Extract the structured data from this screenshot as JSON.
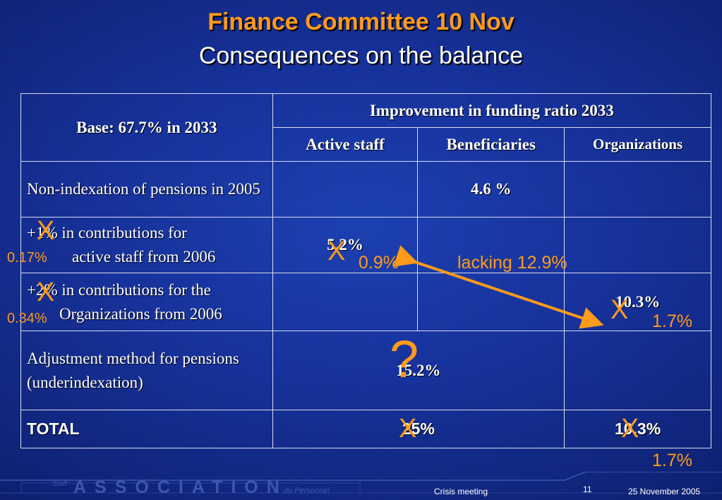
{
  "slide": {
    "title": "Finance Committee 10 Nov",
    "subtitle": "Consequences on the balance"
  },
  "table": {
    "base_label": "Base: 67.7% in 2033",
    "improvement_header": "Improvement in funding ratio 2033",
    "columns": [
      "Active staff",
      "Beneficiaries",
      "Organizations"
    ],
    "rows": [
      {
        "label": "Non-indexation of pensions in 2005",
        "beneficiaries": "4.6 %"
      },
      {
        "label_prefix": "+1% in contributions for",
        "label_suffix": "active staff from 2006",
        "active": "5.2%"
      },
      {
        "label_prefix": "+2% in contributions for the",
        "label_suffix": "Organizations from 2006",
        "organizations": "10.3%"
      },
      {
        "label": "Adjustment method for pensions (underindexation)",
        "active_beneficiaries": "15.2%"
      }
    ],
    "total": {
      "label": "TOTAL",
      "active_beneficiaries": "25%",
      "organizations": "10.3%"
    }
  },
  "annotations": {
    "x_mark": "X",
    "question_mark": "?",
    "row2_left": "0.17%",
    "row3_left": "0.34%",
    "active_new": "0.9%",
    "lacking": "lacking 12.9%",
    "org_new": "1.7%",
    "total_org_new": "1.7%"
  },
  "arrow_color": "#ff9a1a",
  "footer": {
    "association": "ASSOCIATION",
    "staff": "Staff",
    "du_personnel": "du Personnel",
    "meeting": "Crisis meeting",
    "page": "11",
    "date": "25 November 2005"
  }
}
